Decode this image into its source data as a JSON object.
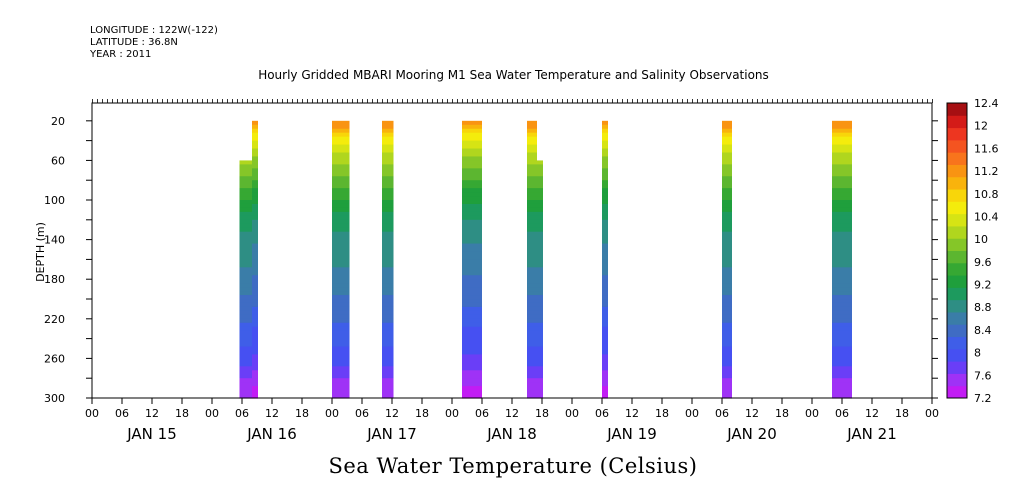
{
  "header": {
    "longitude": "LONGITUDE : 122W(-122)",
    "latitude": "LATITUDE : 36.8N",
    "year": "YEAR : 2011"
  },
  "chart_data": {
    "type": "heatmap",
    "title": "Hourly Gridded MBARI Mooring M1 Sea Water Temperature and Salinity Observations",
    "xlabel": "Sea Water Temperature (Celsius)",
    "ylabel": "DEPTH (m)",
    "ylim": [
      300,
      2
    ],
    "yticks": [
      20,
      60,
      100,
      140,
      180,
      220,
      260,
      300
    ],
    "x_range_hours": [
      0,
      168
    ],
    "x_hour_ticks": [
      "00",
      "06",
      "12",
      "18",
      "00",
      "06",
      "12",
      "18",
      "00",
      "06",
      "12",
      "18",
      "00",
      "06",
      "12",
      "18",
      "00",
      "06",
      "12",
      "18",
      "00",
      "06",
      "12",
      "18",
      "00",
      "06",
      "12",
      "18",
      "00"
    ],
    "x_day_labels": [
      "JAN 15",
      "JAN 16",
      "JAN 17",
      "JAN 18",
      "JAN 19",
      "JAN 20",
      "JAN 21"
    ],
    "colorbar": {
      "labels": [
        "12.4",
        "12",
        "11.6",
        "11.2",
        "10.8",
        "10.4",
        "10",
        "9.6",
        "9.2",
        "8.8",
        "8.4",
        "8",
        "7.6",
        "7.2"
      ],
      "range": [
        7.2,
        12.6
      ],
      "colors": [
        "#c21cf4",
        "#9f32f6",
        "#6a3ef7",
        "#4650f2",
        "#3f5ee8",
        "#3f6cc4",
        "#3a7da8",
        "#2e8e84",
        "#1d9a5e",
        "#1f9f3c",
        "#36a833",
        "#5cb630",
        "#85c628",
        "#b0d61e",
        "#d6e414",
        "#f4ec0c",
        "#f8d60a",
        "#f9b30c",
        "#f99412",
        "#f8741c",
        "#f45420",
        "#ed3620",
        "#d41b18",
        "#a60f12"
      ]
    },
    "profile": [
      {
        "depth": 20,
        "temp": 11.5
      },
      {
        "depth": 30,
        "temp": 11.1
      },
      {
        "depth": 40,
        "temp": 10.7
      },
      {
        "depth": 50,
        "temp": 10.4
      },
      {
        "depth": 60,
        "temp": 10.2
      },
      {
        "depth": 75,
        "temp": 9.9
      },
      {
        "depth": 90,
        "temp": 9.6
      },
      {
        "depth": 110,
        "temp": 9.25
      },
      {
        "depth": 130,
        "temp": 9.0
      },
      {
        "depth": 150,
        "temp": 8.9
      },
      {
        "depth": 170,
        "temp": 8.75
      },
      {
        "depth": 190,
        "temp": 8.6
      },
      {
        "depth": 210,
        "temp": 8.45
      },
      {
        "depth": 230,
        "temp": 8.25
      },
      {
        "depth": 250,
        "temp": 8.1
      },
      {
        "depth": 270,
        "temp": 7.85
      },
      {
        "depth": 285,
        "temp": 7.6
      },
      {
        "depth": 300,
        "temp": 7.4
      }
    ],
    "columns": [
      {
        "start": 29.5,
        "end": 32.0,
        "top_depth": 60,
        "surface_cap_offset": 0
      },
      {
        "start": 32.0,
        "end": 33.2,
        "top_depth": 20,
        "surface_cap_offset": 1.5
      },
      {
        "start": 48.0,
        "end": 51.5,
        "top_depth": 20,
        "surface_cap_offset": 0
      },
      {
        "start": 58.0,
        "end": 60.3,
        "top_depth": 20,
        "surface_cap_offset": 0.3
      },
      {
        "start": 74.0,
        "end": 78.0,
        "top_depth": 20,
        "surface_cap_offset": 0
      },
      {
        "start": 87.0,
        "end": 89.0,
        "top_depth": 20,
        "surface_cap_offset": 0
      },
      {
        "start": 89.0,
        "end": 90.2,
        "top_depth": 60,
        "surface_cap_offset": 0
      },
      {
        "start": 102.0,
        "end": 103.2,
        "top_depth": 20,
        "surface_cap_offset": 0
      },
      {
        "start": 126.0,
        "end": 128.0,
        "top_depth": 20,
        "surface_cap_offset": 0
      },
      {
        "start": 148.0,
        "end": 152.0,
        "top_depth": 20,
        "surface_cap_offset": 0
      }
    ]
  }
}
